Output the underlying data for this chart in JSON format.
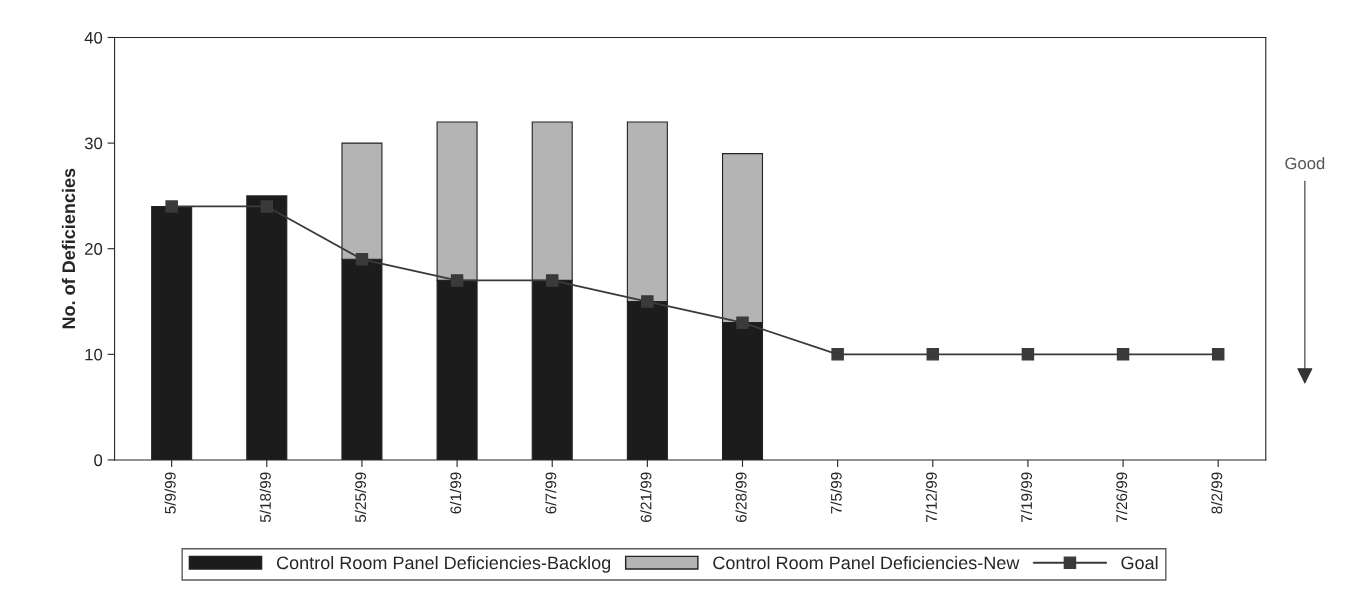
{
  "chart_data": {
    "type": "bar",
    "stacked": true,
    "ylabel": "No. of Deficiencies",
    "categories": [
      "5/9/99",
      "5/18/99",
      "5/25/99",
      "6/1/99",
      "6/7/99",
      "6/21/99",
      "6/28/99",
      "7/5/99",
      "7/12/99",
      "7/19/99",
      "7/26/99",
      "8/2/99"
    ],
    "series": [
      {
        "name": "Control Room Panel Deficiencies-Backlog",
        "color": "#1c1c1c",
        "values": [
          24,
          25,
          19,
          17,
          17,
          15,
          13,
          null,
          null,
          null,
          null,
          null
        ]
      },
      {
        "name": "Control Room Panel Deficiencies-New",
        "color": "#b4b4b4",
        "values": [
          null,
          null,
          11,
          15,
          15,
          17,
          16,
          null,
          null,
          null,
          null,
          null
        ]
      },
      {
        "name": "Goal",
        "type": "line",
        "color": "#3a3a3a",
        "marker": "square",
        "line_style": "solid",
        "values": [
          24,
          24,
          19,
          17,
          17,
          15,
          13,
          10,
          10,
          10,
          10,
          10
        ]
      }
    ],
    "ylim": [
      0,
      40
    ],
    "yticks": [
      0,
      10,
      20,
      30,
      40
    ],
    "grid": false,
    "legend": "bottom",
    "annotations": [
      "Good"
    ]
  }
}
